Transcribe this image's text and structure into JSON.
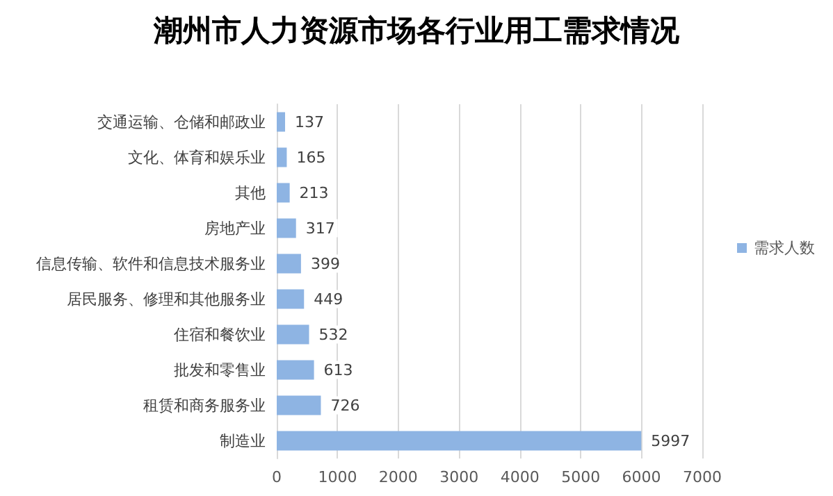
{
  "chart_data": {
    "type": "bar",
    "orientation": "horizontal",
    "title": "潮州市人力资源市场各行业用工需求情况",
    "categories": [
      "交通运输、仓储和邮政业",
      "文化、体育和娱乐业",
      "其他",
      "房地产业",
      "信息传输、软件和信息技术服务业",
      "居民服务、修理和其他服务业",
      "住宿和餐饮业",
      "批发和零售业",
      "租赁和商务服务业",
      "制造业"
    ],
    "series": [
      {
        "name": "需求人数",
        "color": "#8eb4e3",
        "values": [
          137,
          165,
          213,
          317,
          399,
          449,
          532,
          613,
          726,
          5997
        ]
      }
    ],
    "xlim": [
      0,
      7000
    ],
    "xticks": [
      0,
      1000,
      2000,
      3000,
      4000,
      5000,
      6000,
      7000
    ],
    "grid": "x",
    "legend": "right",
    "data_labels": true
  }
}
